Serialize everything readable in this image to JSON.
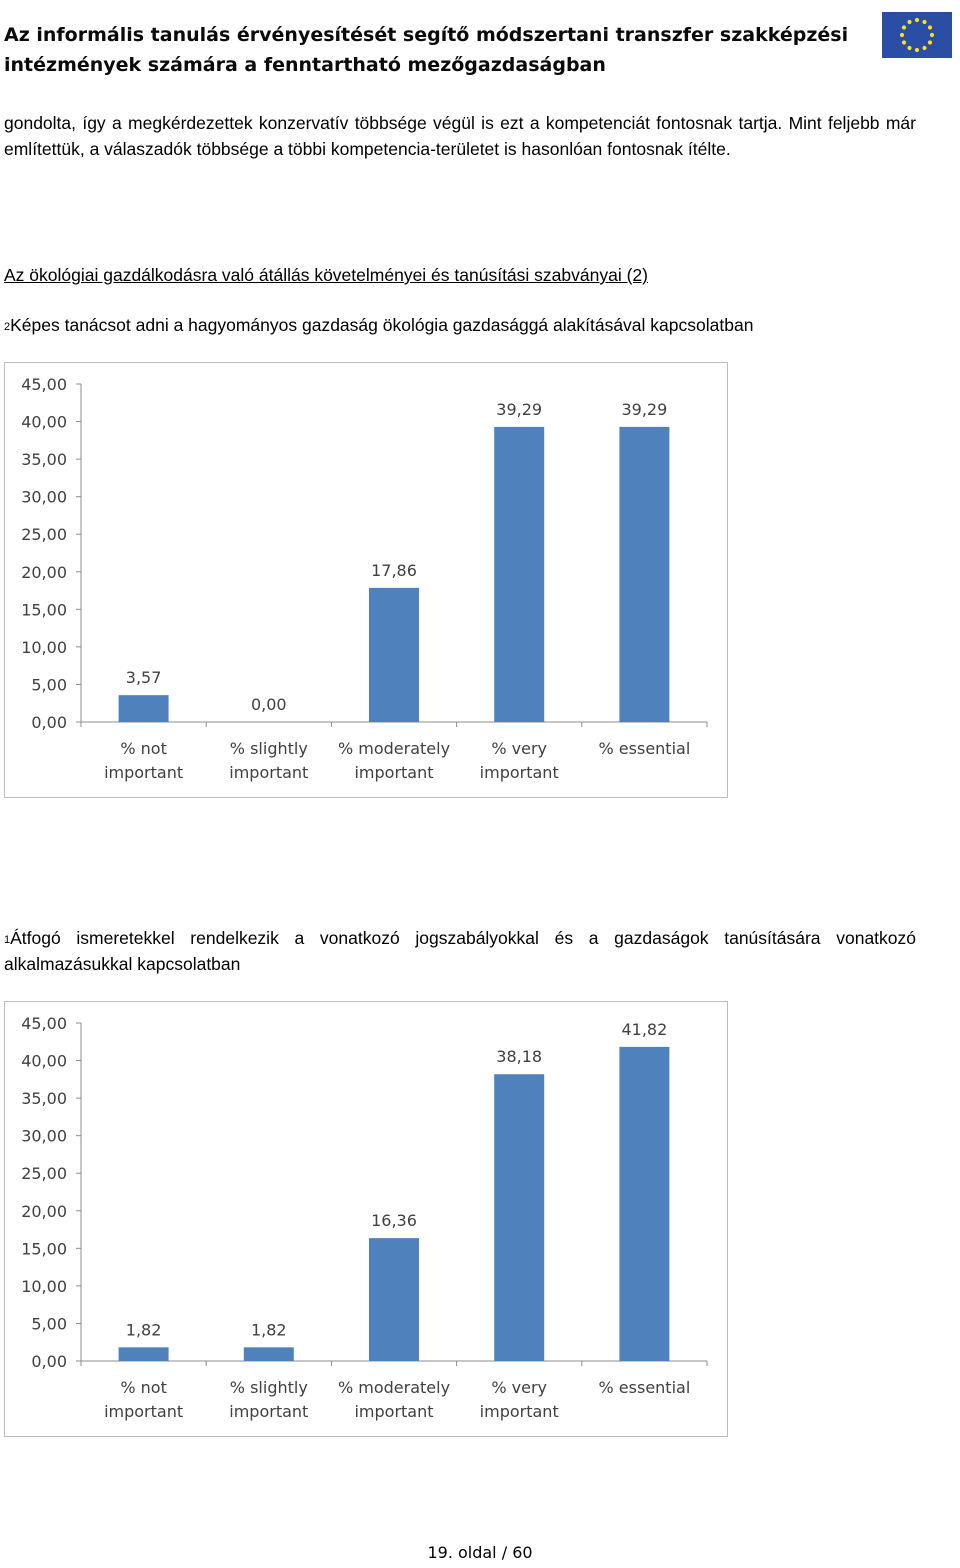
{
  "header": {
    "title_line1": "Az informális tanulás érvényesítését segítő módszertani transzfer szakképzési",
    "title_line2": "intézmények számára a fenntartható mezőgazdaságban",
    "logo_icon": "eu-flag-icon"
  },
  "body": {
    "paragraph1": "gondolta, így a megkérdezettek konzervatív többsége végül is ezt a kompetenciát fontosnak tartja. Mint feljebb már említettük, a válaszadók többsége a többi kompetencia-területet is hasonlóan fontosnak ítélte.",
    "section_heading": "Az ökológiai gazdálkodásra való átállás követelményei és tanúsítási szabványai (2)",
    "question2_num": "2",
    "question2_text": "Képes tanácsot adni a hagyományos gazdaság ökológia gazdasággá alakításával kapcsolatban",
    "question1_num": "1",
    "question1_line1": "Átfogó ismeretekkel rendelkezik a vonatkozó jogszabályokkal és a gazdaságok tanúsítására vonatkozó",
    "question1_line2": "alkalmazásukkal kapcsolatban"
  },
  "chart_data": [
    {
      "type": "bar",
      "categories": [
        [
          "% not",
          "important"
        ],
        [
          "% slightly",
          "important"
        ],
        [
          "% moderately",
          "important"
        ],
        [
          "% very",
          "important"
        ],
        [
          "% essential"
        ]
      ],
      "values": [
        3.57,
        0.0,
        17.86,
        39.29,
        39.29
      ],
      "value_labels": [
        "3,57",
        "0,00",
        "17,86",
        "39,29",
        "39,29"
      ],
      "y_ticks": [
        "0,00",
        "5,00",
        "10,00",
        "15,00",
        "20,00",
        "25,00",
        "30,00",
        "35,00",
        "40,00",
        "45,00"
      ],
      "ylim": [
        0,
        45
      ],
      "grid": false,
      "bar_color": "#4f81bd"
    },
    {
      "type": "bar",
      "categories": [
        [
          "% not",
          "important"
        ],
        [
          "% slightly",
          "important"
        ],
        [
          "% moderately",
          "important"
        ],
        [
          "% very",
          "important"
        ],
        [
          "% essential"
        ]
      ],
      "values": [
        1.82,
        1.82,
        16.36,
        38.18,
        41.82
      ],
      "value_labels": [
        "1,82",
        "1,82",
        "16,36",
        "38,18",
        "41,82"
      ],
      "y_ticks": [
        "0,00",
        "5,00",
        "10,00",
        "15,00",
        "20,00",
        "25,00",
        "30,00",
        "35,00",
        "40,00",
        "45,00"
      ],
      "ylim": [
        0,
        45
      ],
      "grid": false,
      "bar_color": "#4f81bd"
    }
  ],
  "footer": {
    "page_label": "19. oldal / 60"
  }
}
